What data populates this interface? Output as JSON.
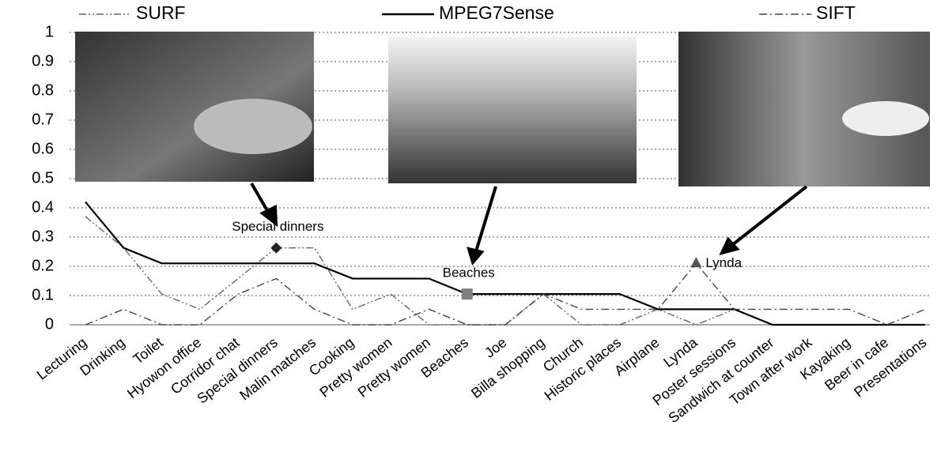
{
  "chart_data": {
    "type": "line",
    "categories": [
      "Lecturing",
      "Drinking",
      "Toilet",
      "Hyowon office",
      "Corridor chat",
      "Special dinners",
      "Malin matches",
      "Cooking",
      "Pretty women",
      "Pretty women",
      "Beaches",
      "Joe",
      "Billa shopping",
      "Church",
      "Historic places",
      "Airplane",
      "Lynda",
      "Poster sessions",
      "Sandwich at counter",
      "Town after work",
      "Kayaking",
      "Beer in cafe",
      "Presentations"
    ],
    "series": [
      {
        "name": "SURF",
        "color": "#666666",
        "dash": "9,3,2,3,2,3",
        "values": [
          0.37,
          0.263,
          0.105,
          0.053,
          0.158,
          0.263,
          0.263,
          0.053,
          0.105,
          0,
          0,
          0,
          0.105,
          0,
          0,
          0.053,
          0,
          0.053,
          0,
          0,
          0,
          0,
          0
        ]
      },
      {
        "name": "MPEG7Sense",
        "color": "#000000",
        "dash": "none",
        "values": [
          0.42,
          0.263,
          0.21,
          0.21,
          0.21,
          0.21,
          0.21,
          0.158,
          0.158,
          0.158,
          0.105,
          0.105,
          0.105,
          0.105,
          0.105,
          0.053,
          0.053,
          0.053,
          0,
          0,
          0,
          0,
          0
        ]
      },
      {
        "name": "SIFT",
        "color": "#444444",
        "dash": "10,4,2,4",
        "values": [
          0,
          0.053,
          0,
          0,
          0.105,
          0.158,
          0.053,
          0,
          0,
          0.053,
          0,
          0,
          0.105,
          0.053,
          0.053,
          0.053,
          0.21,
          0.053,
          0.053,
          0.053,
          0.053,
          0,
          0.053
        ]
      }
    ],
    "annotations": [
      {
        "text": "Special dinners",
        "series": "SURF",
        "at": "Special dinners",
        "marker": "diamond",
        "color": "#222222"
      },
      {
        "text": "Beaches",
        "series": "MPEG7Sense",
        "at": "Beaches",
        "marker": "square",
        "color": "#808080"
      },
      {
        "text": "Lynda",
        "series": "SIFT",
        "at": "Lynda",
        "marker": "triangle",
        "color": "#555555"
      }
    ],
    "ylim": [
      0,
      1
    ],
    "yticks": [
      0,
      0.1,
      0.2,
      0.3,
      0.4,
      0.5,
      0.6,
      0.7,
      0.8,
      0.9,
      1
    ],
    "grid": true
  }
}
